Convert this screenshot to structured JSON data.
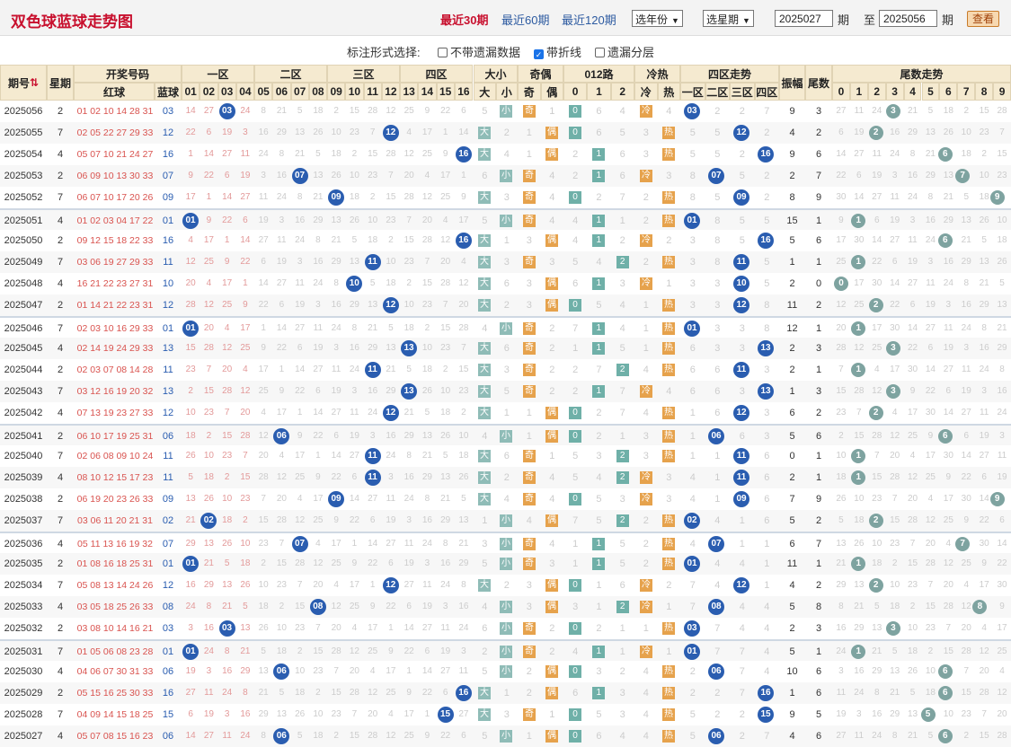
{
  "header": {
    "title": "双色球蓝球走势图",
    "ranges": [
      "最近30期",
      "最近60期",
      "最近120期"
    ],
    "active_range": 0,
    "year_select": "选年份",
    "week_select": "选星期",
    "from": "2025027",
    "from_unit": "期",
    "to_label": "至",
    "to": "2025056",
    "to_unit": "期",
    "query": "查看"
  },
  "options": {
    "label": "标注形式选择:",
    "items": [
      {
        "text": "不带遗漏数据",
        "checked": false
      },
      {
        "text": "带折线",
        "checked": true
      },
      {
        "text": "遗漏分层",
        "checked": false
      }
    ]
  },
  "columns": {
    "issue": "期号",
    "sort_icon": "⇅",
    "week": "星期",
    "draw": "开奖号码",
    "red": "红球",
    "blue": "蓝球",
    "zone1": "一区",
    "zone2": "二区",
    "zone3": "三区",
    "zone4": "四区",
    "size": "大小",
    "big": "大",
    "small": "小",
    "parity": "奇偶",
    "odd": "奇",
    "even": "偶",
    "route": "012路",
    "r0": "0",
    "r1": "1",
    "r2": "2",
    "temp": "冷热",
    "cold": "冷",
    "hot": "热",
    "zonetrend": "四区走势",
    "zt": [
      "一区",
      "二区",
      "三区",
      "四区"
    ],
    "amp": "振幅",
    "tail": "尾数",
    "tailtrend": "尾数走势",
    "nums": [
      "01",
      "02",
      "03",
      "04",
      "05",
      "06",
      "07",
      "08",
      "09",
      "10",
      "11",
      "12",
      "13",
      "14",
      "15",
      "16"
    ],
    "tails": [
      "0",
      "1",
      "2",
      "3",
      "4",
      "5",
      "6",
      "7",
      "8",
      "9"
    ]
  },
  "rows": [
    {
      "issue": "2025056",
      "week": "2",
      "red": "01 02 10 14 28 31",
      "blue": "03",
      "amp": "9",
      "tail": "3",
      "temp": "冷"
    },
    {
      "issue": "2025055",
      "week": "7",
      "red": "02 05 22 27 29 33",
      "blue": "12",
      "amp": "4",
      "tail": "2",
      "temp": "热"
    },
    {
      "issue": "2025054",
      "week": "4",
      "red": "05 07 10 21 24 27",
      "blue": "16",
      "amp": "9",
      "tail": "6",
      "temp": "热"
    },
    {
      "issue": "2025053",
      "week": "2",
      "red": "06 09 10 13 30 33",
      "blue": "07",
      "amp": "2",
      "tail": "7",
      "temp": "冷"
    },
    {
      "issue": "2025052",
      "week": "7",
      "red": "06 07 10 17 20 26",
      "blue": "09",
      "amp": "8",
      "tail": "9",
      "temp": "热"
    },
    {
      "issue": "2025051",
      "week": "4",
      "red": "01 02 03 04 17 22",
      "blue": "01",
      "amp": "15",
      "tail": "1",
      "temp": "热"
    },
    {
      "issue": "2025050",
      "week": "2",
      "red": "09 12 15 18 22 33",
      "blue": "16",
      "amp": "5",
      "tail": "6",
      "temp": "冷"
    },
    {
      "issue": "2025049",
      "week": "7",
      "red": "03 06 19 27 29 33",
      "blue": "11",
      "amp": "1",
      "tail": "1",
      "temp": "热"
    },
    {
      "issue": "2025048",
      "week": "4",
      "red": "16 21 22 23 27 31",
      "blue": "10",
      "amp": "2",
      "tail": "0",
      "temp": "冷"
    },
    {
      "issue": "2025047",
      "week": "2",
      "red": "01 14 21 22 23 31",
      "blue": "12",
      "amp": "11",
      "tail": "2",
      "temp": "热"
    },
    {
      "issue": "2025046",
      "week": "7",
      "red": "02 03 10 16 29 33",
      "blue": "01",
      "amp": "12",
      "tail": "1",
      "temp": "热"
    },
    {
      "issue": "2025045",
      "week": "4",
      "red": "02 14 19 24 29 33",
      "blue": "13",
      "amp": "2",
      "tail": "3",
      "temp": "热"
    },
    {
      "issue": "2025044",
      "week": "2",
      "red": "02 03 07 08 14 28",
      "blue": "11",
      "amp": "2",
      "tail": "1",
      "temp": "热"
    },
    {
      "issue": "2025043",
      "week": "7",
      "red": "03 12 16 19 20 32",
      "blue": "13",
      "amp": "1",
      "tail": "3",
      "temp": "冷"
    },
    {
      "issue": "2025042",
      "week": "4",
      "red": "07 13 19 23 27 33",
      "blue": "12",
      "amp": "6",
      "tail": "2",
      "temp": "热"
    },
    {
      "issue": "2025041",
      "week": "2",
      "red": "06 10 17 19 25 31",
      "blue": "06",
      "amp": "5",
      "tail": "6",
      "temp": "热"
    },
    {
      "issue": "2025040",
      "week": "7",
      "red": "02 06 08 09 10 24",
      "blue": "11",
      "amp": "0",
      "tail": "1",
      "temp": "热"
    },
    {
      "issue": "2025039",
      "week": "4",
      "red": "08 10 12 15 17 23",
      "blue": "11",
      "amp": "2",
      "tail": "1",
      "temp": "冷"
    },
    {
      "issue": "2025038",
      "week": "2",
      "red": "06 19 20 23 26 33",
      "blue": "09",
      "amp": "7",
      "tail": "9",
      "temp": "冷"
    },
    {
      "issue": "2025037",
      "week": "7",
      "red": "03 06 11 20 21 31",
      "blue": "02",
      "amp": "5",
      "tail": "2",
      "temp": "热"
    },
    {
      "issue": "2025036",
      "week": "4",
      "red": "05 11 13 16 19 32",
      "blue": "07",
      "amp": "6",
      "tail": "7",
      "temp": "热"
    },
    {
      "issue": "2025035",
      "week": "2",
      "red": "01 08 16 18 25 31",
      "blue": "01",
      "amp": "11",
      "tail": "1",
      "temp": "热"
    },
    {
      "issue": "2025034",
      "week": "7",
      "red": "05 08 13 14 24 26",
      "blue": "12",
      "amp": "4",
      "tail": "2",
      "temp": "冷"
    },
    {
      "issue": "2025033",
      "week": "4",
      "red": "03 05 18 25 26 33",
      "blue": "08",
      "amp": "5",
      "tail": "8",
      "temp": "冷"
    },
    {
      "issue": "2025032",
      "week": "2",
      "red": "03 08 10 14 16 21",
      "blue": "03",
      "amp": "2",
      "tail": "3",
      "temp": "热"
    },
    {
      "issue": "2025031",
      "week": "7",
      "red": "01 05 06 08 23 28",
      "blue": "01",
      "amp": "5",
      "tail": "1",
      "temp": "冷"
    },
    {
      "issue": "2025030",
      "week": "4",
      "red": "04 06 07 30 31 33",
      "blue": "06",
      "amp": "10",
      "tail": "6",
      "temp": "热"
    },
    {
      "issue": "2025029",
      "week": "2",
      "red": "05 15 16 25 30 33",
      "blue": "16",
      "amp": "1",
      "tail": "6",
      "temp": "热"
    },
    {
      "issue": "2025028",
      "week": "7",
      "red": "04 09 14 15 18 25",
      "blue": "15",
      "amp": "9",
      "tail": "5",
      "temp": "热"
    },
    {
      "issue": "2025027",
      "week": "4",
      "red": "05 07 08 15 16 23",
      "blue": "06",
      "amp": "4",
      "tail": "6",
      "temp": "热"
    }
  ],
  "colors": {
    "accent": "#c8102e",
    "ball": "#2a5db0",
    "tail_ball": "#7ea3a0",
    "header_bg": "#f5ead0",
    "badge_teal": "#8fbcb7",
    "badge_orange": "#e6a24c"
  }
}
